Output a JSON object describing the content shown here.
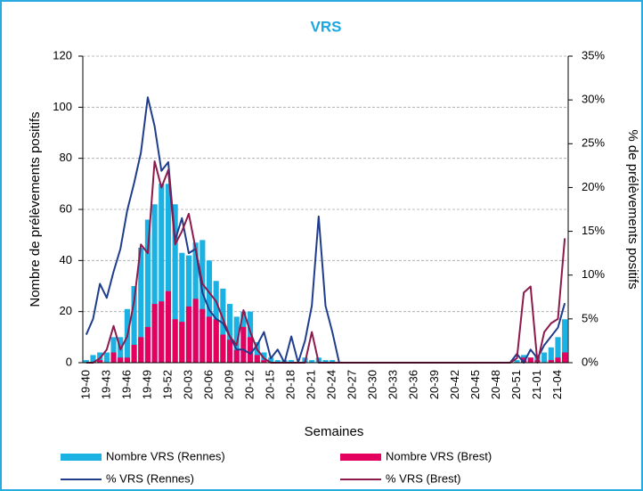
{
  "chart_data": {
    "type": "combo",
    "title": "VRS",
    "x_label": "Semaines",
    "y_label": "Nombre de prélèvements positifs",
    "y2_label": "% de prélèvements positifs",
    "categories": [
      "19-40",
      null,
      null,
      "19-43",
      null,
      null,
      "19-46",
      null,
      null,
      "19-49",
      null,
      null,
      "19-52",
      null,
      null,
      "20-03",
      null,
      null,
      "20-06",
      null,
      null,
      "20-09",
      null,
      null,
      "20-12",
      null,
      null,
      "20-15",
      null,
      null,
      "20-18",
      null,
      null,
      "20-21",
      null,
      null,
      "20-24",
      null,
      null,
      "20-27",
      null,
      null,
      "20-30",
      null,
      null,
      "20-33",
      null,
      null,
      "20-36",
      null,
      null,
      "20-39",
      null,
      null,
      "20-42",
      null,
      null,
      "20-45",
      null,
      null,
      "20-48",
      null,
      null,
      "20-51",
      null,
      null,
      "21-01",
      null,
      null,
      "21-04",
      null
    ],
    "ylim": [
      0,
      120
    ],
    "yticks": [
      0,
      20,
      40,
      60,
      80,
      100,
      120
    ],
    "y2lim": [
      0,
      35
    ],
    "y2ticks": [
      {
        "value": 0,
        "label": "0%"
      },
      {
        "value": 5,
        "label": "5%"
      },
      {
        "value": 10,
        "label": "10%"
      },
      {
        "value": 15,
        "label": "15%"
      },
      {
        "value": 20,
        "label": "20%"
      },
      {
        "value": 25,
        "label": "25%"
      },
      {
        "value": 30,
        "label": "30%"
      },
      {
        "value": 35,
        "label": "35%"
      }
    ],
    "grid": true,
    "series": [
      {
        "name": "Nombre VRS (Rennes)",
        "type": "bar",
        "color": "#1cb1e3",
        "values": [
          1,
          3,
          4,
          4,
          10,
          10,
          21,
          30,
          45,
          56,
          62,
          70,
          70,
          62,
          43,
          42,
          47,
          48,
          40,
          32,
          29,
          23,
          18,
          20,
          20,
          8,
          4,
          2,
          1,
          1,
          1,
          0,
          2,
          1,
          2,
          1,
          1,
          0,
          0,
          0,
          0,
          0,
          0,
          0,
          0,
          0,
          0,
          0,
          0,
          0,
          0,
          0,
          0,
          0,
          0,
          0,
          0,
          0,
          0,
          0,
          0,
          0,
          0,
          1,
          3,
          2,
          3,
          4,
          6,
          10,
          17
        ]
      },
      {
        "name": "Nombre VRS (Brest)",
        "type": "bar",
        "color": "#e3005e",
        "values": [
          0,
          0,
          1,
          0,
          4,
          2,
          2,
          7,
          10,
          14,
          23,
          24,
          28,
          17,
          16,
          22,
          25,
          21,
          18,
          17,
          11,
          9,
          5,
          14,
          10,
          3,
          1,
          0,
          0,
          0,
          0,
          0,
          0,
          0,
          0,
          0,
          0,
          0,
          0,
          0,
          0,
          0,
          0,
          0,
          0,
          0,
          0,
          0,
          0,
          0,
          0,
          0,
          0,
          0,
          0,
          0,
          0,
          0,
          0,
          0,
          0,
          0,
          0,
          0,
          2,
          2,
          1,
          0,
          1,
          2,
          4
        ]
      },
      {
        "name": "% VRS (Rennes)",
        "type": "line",
        "axis": "y2",
        "color": "#1f3d8c",
        "values": [
          3.2,
          5,
          9,
          7.4,
          10.4,
          13,
          17.4,
          20.5,
          24,
          30.3,
          27,
          21.9,
          22.9,
          14,
          16.5,
          12.5,
          13,
          8,
          6,
          5,
          4.5,
          3,
          1.5,
          1.5,
          1,
          2,
          3.5,
          0.5,
          1.5,
          0,
          3,
          0,
          2.5,
          6.5,
          16.7,
          6.5,
          3.5,
          0,
          0,
          0,
          0,
          0,
          0,
          0,
          0,
          0,
          0,
          0,
          0,
          0,
          0,
          0,
          0,
          0,
          0,
          0,
          0,
          0,
          0,
          0,
          0,
          0,
          0,
          1,
          0,
          1.5,
          0.5,
          2,
          3,
          4,
          6.8
        ]
      },
      {
        "name": "% VRS (Brest)",
        "type": "line",
        "axis": "y2",
        "color": "#8c1a4c",
        "values": [
          0,
          0,
          0.5,
          1.5,
          4.2,
          1.5,
          3,
          7,
          13.5,
          12.5,
          23,
          20,
          22,
          13.5,
          15,
          17,
          13,
          9,
          8,
          7,
          5,
          3,
          2,
          6,
          3.5,
          1.5,
          0.5,
          0,
          0,
          0,
          0,
          0,
          0,
          3.5,
          0,
          0,
          0,
          0,
          0,
          0,
          0,
          0,
          0,
          0,
          0,
          0,
          0,
          0,
          0,
          0,
          0,
          0,
          0,
          0,
          0,
          0,
          0,
          0,
          0,
          0,
          0,
          0,
          0,
          0.5,
          8,
          8.7,
          0,
          3.5,
          4.5,
          5,
          14.2
        ]
      }
    ]
  }
}
